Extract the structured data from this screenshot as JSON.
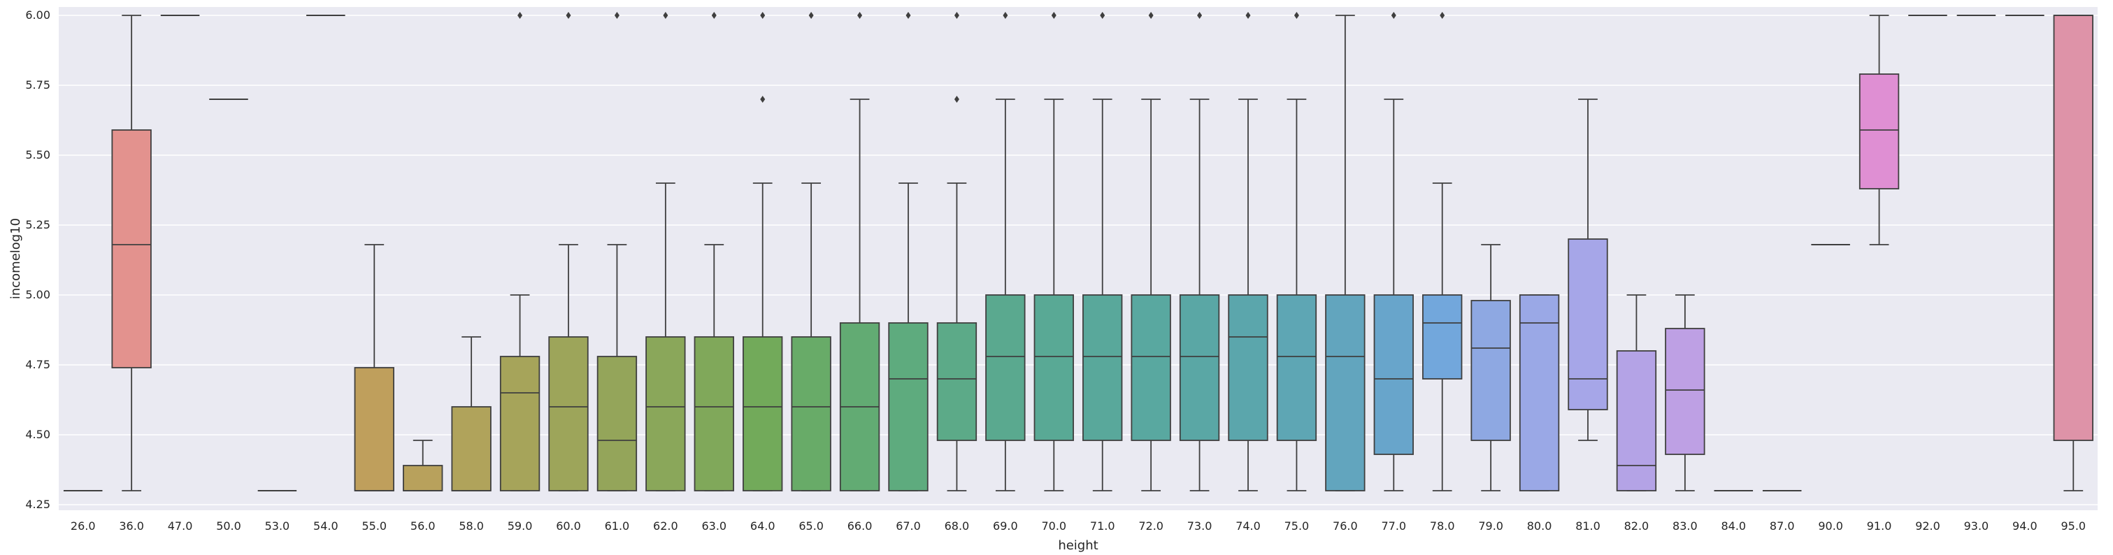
{
  "chart_data": {
    "type": "box",
    "xlabel": "height",
    "ylabel": "incomelog10",
    "ylim": [
      4.23,
      6.03
    ],
    "yticks": [
      "4.25",
      "4.50",
      "4.75",
      "5.00",
      "5.25",
      "5.50",
      "5.75",
      "6.00"
    ],
    "categories": [
      "26.0",
      "36.0",
      "47.0",
      "50.0",
      "53.0",
      "54.0",
      "55.0",
      "56.0",
      "58.0",
      "59.0",
      "60.0",
      "61.0",
      "62.0",
      "63.0",
      "64.0",
      "65.0",
      "66.0",
      "67.0",
      "68.0",
      "69.0",
      "70.0",
      "71.0",
      "72.0",
      "73.0",
      "74.0",
      "75.0",
      "76.0",
      "77.0",
      "78.0",
      "79.0",
      "80.0",
      "81.0",
      "82.0",
      "83.0",
      "84.0",
      "87.0",
      "90.0",
      "91.0",
      "92.0",
      "93.0",
      "94.0",
      "95.0"
    ],
    "grid": true,
    "background": "#eaeaf2",
    "boxes": [
      {
        "category": "26.0",
        "min": 4.3,
        "q1": 4.3,
        "median": 4.3,
        "q3": 4.3,
        "max": 4.3,
        "fliers": [],
        "color": "#e3928e"
      },
      {
        "category": "36.0",
        "min": 4.3,
        "q1": 4.74,
        "median": 5.18,
        "q3": 5.59,
        "max": 6.0,
        "fliers": [],
        "color": "#e3928e"
      },
      {
        "category": "47.0",
        "min": 6.0,
        "q1": 6.0,
        "median": 6.0,
        "q3": 6.0,
        "max": 6.0,
        "fliers": [],
        "color": "#e0977a"
      },
      {
        "category": "50.0",
        "min": 5.7,
        "q1": 5.7,
        "median": 5.7,
        "q3": 5.7,
        "max": 5.7,
        "fliers": [],
        "color": "#dc9c6b"
      },
      {
        "category": "53.0",
        "min": 4.3,
        "q1": 4.3,
        "median": 4.3,
        "q3": 4.3,
        "max": 4.3,
        "fliers": [],
        "color": "#d39f60"
      },
      {
        "category": "54.0",
        "min": 6.0,
        "q1": 6.0,
        "median": 6.0,
        "q3": 6.0,
        "max": 6.0,
        "fliers": [],
        "color": "#c9a25c"
      },
      {
        "category": "55.0",
        "min": 4.3,
        "q1": 4.3,
        "median": 4.3,
        "q3": 4.74,
        "max": 5.18,
        "fliers": [],
        "color": "#bf9f5c"
      },
      {
        "category": "56.0",
        "min": 4.3,
        "q1": 4.3,
        "median": 4.3,
        "q3": 4.39,
        "max": 4.48,
        "fliers": [],
        "color": "#b8a15c"
      },
      {
        "category": "58.0",
        "min": 4.3,
        "q1": 4.3,
        "median": 4.3,
        "q3": 4.6,
        "max": 4.85,
        "fliers": [],
        "color": "#b0a35b"
      },
      {
        "category": "59.0",
        "min": 4.3,
        "q1": 4.3,
        "median": 4.65,
        "q3": 4.78,
        "max": 5.0,
        "fliers": [
          6.0
        ],
        "color": "#a6a45a"
      },
      {
        "category": "60.0",
        "min": 4.3,
        "q1": 4.3,
        "median": 4.6,
        "q3": 4.85,
        "max": 5.18,
        "fliers": [
          6.0
        ],
        "color": "#9da55a"
      },
      {
        "category": "61.0",
        "min": 4.3,
        "q1": 4.3,
        "median": 4.48,
        "q3": 4.78,
        "max": 5.18,
        "fliers": [
          6.0
        ],
        "color": "#94a55a"
      },
      {
        "category": "62.0",
        "min": 4.3,
        "q1": 4.3,
        "median": 4.6,
        "q3": 4.85,
        "max": 5.4,
        "fliers": [
          6.0
        ],
        "color": "#8aa75a"
      },
      {
        "category": "63.0",
        "min": 4.3,
        "q1": 4.3,
        "median": 4.6,
        "q3": 4.85,
        "max": 5.18,
        "fliers": [
          6.0
        ],
        "color": "#80a85a"
      },
      {
        "category": "64.0",
        "min": 4.3,
        "q1": 4.3,
        "median": 4.6,
        "q3": 4.85,
        "max": 5.4,
        "fliers": [
          5.7,
          6.0
        ],
        "color": "#72aa5a"
      },
      {
        "category": "65.0",
        "min": 4.3,
        "q1": 4.3,
        "median": 4.6,
        "q3": 4.85,
        "max": 5.4,
        "fliers": [
          6.0
        ],
        "color": "#68ab68"
      },
      {
        "category": "66.0",
        "min": 4.3,
        "q1": 4.3,
        "median": 4.6,
        "q3": 4.9,
        "max": 5.7,
        "fliers": [
          6.0
        ],
        "color": "#62ab73"
      },
      {
        "category": "67.0",
        "min": 4.3,
        "q1": 4.3,
        "median": 4.7,
        "q3": 4.9,
        "max": 5.4,
        "fliers": [
          6.0
        ],
        "color": "#5eab7e"
      },
      {
        "category": "68.0",
        "min": 4.3,
        "q1": 4.48,
        "median": 4.7,
        "q3": 4.9,
        "max": 5.4,
        "fliers": [
          5.7,
          6.0
        ],
        "color": "#5caa88"
      },
      {
        "category": "69.0",
        "min": 4.3,
        "q1": 4.48,
        "median": 4.78,
        "q3": 5.0,
        "max": 5.7,
        "fliers": [
          6.0
        ],
        "color": "#5aa98f"
      },
      {
        "category": "70.0",
        "min": 4.3,
        "q1": 4.48,
        "median": 4.78,
        "q3": 5.0,
        "max": 5.7,
        "fliers": [
          6.0
        ],
        "color": "#59a995"
      },
      {
        "category": "71.0",
        "min": 4.3,
        "q1": 4.48,
        "median": 4.78,
        "q3": 5.0,
        "max": 5.7,
        "fliers": [
          6.0
        ],
        "color": "#59a89b"
      },
      {
        "category": "72.0",
        "min": 4.3,
        "q1": 4.48,
        "median": 4.78,
        "q3": 5.0,
        "max": 5.7,
        "fliers": [
          6.0
        ],
        "color": "#59a8a0"
      },
      {
        "category": "73.0",
        "min": 4.3,
        "q1": 4.48,
        "median": 4.78,
        "q3": 5.0,
        "max": 5.7,
        "fliers": [
          6.0
        ],
        "color": "#5aa7a5"
      },
      {
        "category": "74.0",
        "min": 4.3,
        "q1": 4.48,
        "median": 4.85,
        "q3": 5.0,
        "max": 5.7,
        "fliers": [
          6.0
        ],
        "color": "#5ba6ac"
      },
      {
        "category": "75.0",
        "min": 4.3,
        "q1": 4.48,
        "median": 4.78,
        "q3": 5.0,
        "max": 5.7,
        "fliers": [
          6.0
        ],
        "color": "#5ea6b4"
      },
      {
        "category": "76.0",
        "min": 4.3,
        "q1": 4.3,
        "median": 4.78,
        "q3": 5.0,
        "max": 6.0,
        "fliers": [],
        "color": "#62a5be"
      },
      {
        "category": "77.0",
        "min": 4.3,
        "q1": 4.43,
        "median": 4.7,
        "q3": 5.0,
        "max": 5.7,
        "fliers": [
          6.0
        ],
        "color": "#68a5cb"
      },
      {
        "category": "78.0",
        "min": 4.3,
        "q1": 4.7,
        "median": 4.9,
        "q3": 5.0,
        "max": 5.4,
        "fliers": [
          6.0
        ],
        "color": "#72a7dc"
      },
      {
        "category": "79.0",
        "min": 4.3,
        "q1": 4.48,
        "median": 4.81,
        "q3": 4.98,
        "max": 5.18,
        "fliers": [],
        "color": "#8ea8e2"
      },
      {
        "category": "80.0",
        "min": 4.3,
        "q1": 4.3,
        "median": 4.9,
        "q3": 5.0,
        "max": 5.0,
        "fliers": [],
        "color": "#9aa8e6"
      },
      {
        "category": "81.0",
        "min": 4.48,
        "q1": 4.59,
        "median": 4.7,
        "q3": 5.2,
        "max": 5.7,
        "fliers": [],
        "color": "#a6a6e8"
      },
      {
        "category": "82.0",
        "min": 4.3,
        "q1": 4.3,
        "median": 4.39,
        "q3": 4.8,
        "max": 5.0,
        "fliers": [],
        "color": "#b4a3e6"
      },
      {
        "category": "83.0",
        "min": 4.3,
        "q1": 4.43,
        "median": 4.66,
        "q3": 4.88,
        "max": 5.0,
        "fliers": [],
        "color": "#bea0e4"
      },
      {
        "category": "84.0",
        "min": 4.3,
        "q1": 4.3,
        "median": 4.3,
        "q3": 4.3,
        "max": 4.3,
        "fliers": [],
        "color": "#c79ce2"
      },
      {
        "category": "87.0",
        "min": 4.3,
        "q1": 4.3,
        "median": 4.3,
        "q3": 4.3,
        "max": 4.3,
        "fliers": [],
        "color": "#d096dc"
      },
      {
        "category": "90.0",
        "min": 5.18,
        "q1": 5.18,
        "median": 5.18,
        "q3": 5.18,
        "max": 5.18,
        "fliers": [],
        "color": "#d993d6"
      },
      {
        "category": "91.0",
        "min": 5.18,
        "q1": 5.38,
        "median": 5.59,
        "q3": 5.79,
        "max": 6.0,
        "fliers": [],
        "color": "#df8fd3"
      },
      {
        "category": "92.0",
        "min": 6.0,
        "q1": 6.0,
        "median": 6.0,
        "q3": 6.0,
        "max": 6.0,
        "fliers": [],
        "color": "#e08fc3"
      },
      {
        "category": "93.0",
        "min": 6.0,
        "q1": 6.0,
        "median": 6.0,
        "q3": 6.0,
        "max": 6.0,
        "fliers": [],
        "color": "#e08fb8"
      },
      {
        "category": "94.0",
        "min": 6.0,
        "q1": 6.0,
        "median": 6.0,
        "q3": 6.0,
        "max": 6.0,
        "fliers": [],
        "color": "#df90ad"
      },
      {
        "category": "95.0",
        "min": 4.3,
        "q1": 4.48,
        "median": 6.0,
        "q3": 6.0,
        "max": 6.0,
        "fliers": [],
        "color": "#de93a8"
      }
    ]
  }
}
